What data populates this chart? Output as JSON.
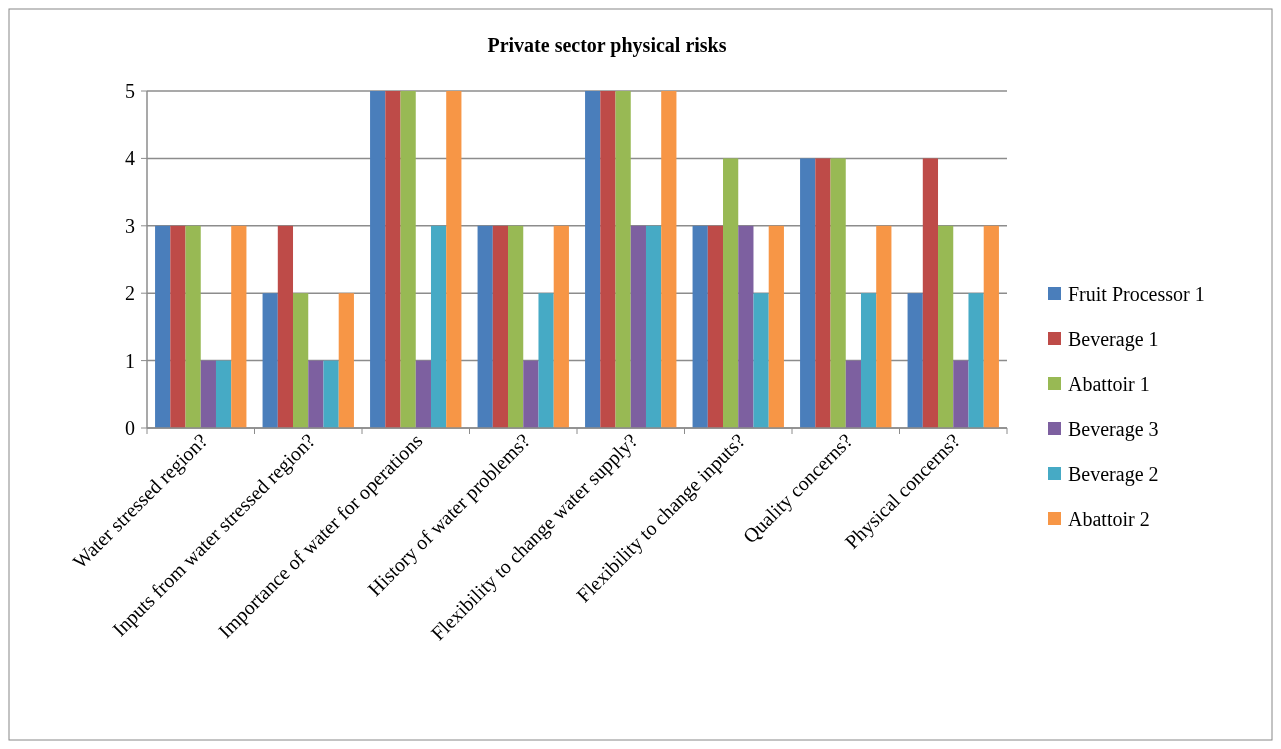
{
  "chart_data": {
    "type": "bar",
    "title": "Private sector physical risks",
    "categories": [
      "Water stressed region?",
      "Inputs from water stressed region?",
      "Importance of water for operations",
      "History of water problems?",
      "Flexibility to change water supply?",
      "Flexibility to change inputs?",
      "Quality concerns?",
      "Physical concerns?"
    ],
    "series": [
      {
        "name": "Fruit Processor 1",
        "color": "#4a7ebb",
        "values": [
          3,
          2,
          5,
          3,
          5,
          3,
          4,
          2
        ]
      },
      {
        "name": "Beverage 1",
        "color": "#be4b48",
        "values": [
          3,
          3,
          5,
          3,
          5,
          3,
          4,
          4
        ]
      },
      {
        "name": "Abattoir 1",
        "color": "#98b954",
        "values": [
          3,
          2,
          5,
          3,
          5,
          4,
          4,
          3
        ]
      },
      {
        "name": "Beverage 3",
        "color": "#7d60a0",
        "values": [
          1,
          1,
          1,
          1,
          3,
          3,
          1,
          1
        ]
      },
      {
        "name": "Beverage 2",
        "color": "#46aac5",
        "values": [
          1,
          1,
          3,
          2,
          3,
          2,
          2,
          2
        ]
      },
      {
        "name": "Abattoir 2",
        "color": "#f79646",
        "values": [
          3,
          2,
          5,
          3,
          5,
          3,
          3,
          3
        ]
      }
    ],
    "ylim": [
      0,
      5
    ],
    "yticks": [
      0,
      1,
      2,
      3,
      4,
      5
    ],
    "grid": "y",
    "legend": "right"
  }
}
